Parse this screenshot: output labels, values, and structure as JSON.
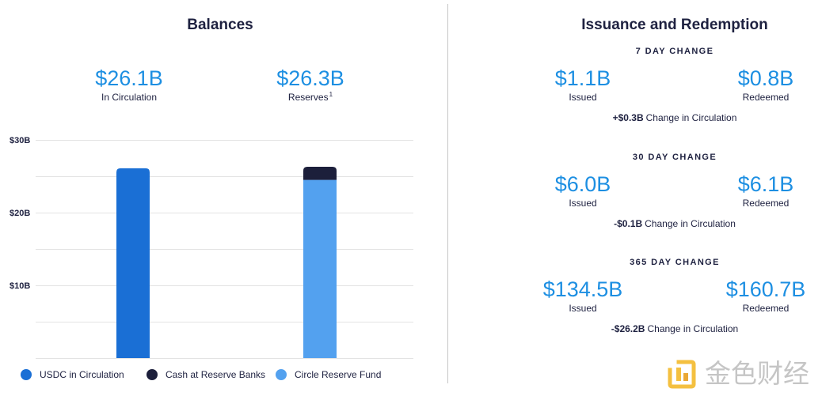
{
  "colors": {
    "text": "#1e2140",
    "accent": "#1d8fe2",
    "gridline": "#e3e3e3",
    "divider": "#c6c6c6"
  },
  "chart_data": {
    "type": "bar",
    "stacked": true,
    "title": "Balances",
    "ylim": [
      0,
      30
    ],
    "yticks": [
      10,
      20,
      30
    ],
    "ytick_labels": [
      "$10B",
      "$20B",
      "$30B"
    ],
    "ygrid_step": 5,
    "grid": true,
    "legend": "bottom",
    "series": [
      {
        "name": "USDC in Circulation",
        "color": "#1a6fd5",
        "values": [
          26.1,
          null
        ]
      },
      {
        "name": "Cash at Reserve Banks",
        "color": "#1c1f3b",
        "values": [
          null,
          1.8
        ]
      },
      {
        "name": "Circle Reserve Fund",
        "color": "#53a1ef",
        "values": [
          null,
          24.5
        ]
      }
    ]
  },
  "balances": {
    "stats": [
      {
        "value": "$26.1B",
        "label": "In Circulation"
      },
      {
        "value": "$26.3B",
        "label": "Reserves",
        "footnote": "1"
      }
    ]
  },
  "issuance": {
    "title": "Issuance and Redemption",
    "periods": [
      {
        "heading": "7 DAY CHANGE",
        "issued": {
          "value": "$1.1B",
          "label": "Issued"
        },
        "redeemed": {
          "value": "$0.8B",
          "label": "Redeemed"
        },
        "change": {
          "value": "+$0.3B",
          "label": "Change in Circulation"
        }
      },
      {
        "heading": "30 DAY CHANGE",
        "issued": {
          "value": "$6.0B",
          "label": "Issued"
        },
        "redeemed": {
          "value": "$6.1B",
          "label": "Redeemed"
        },
        "change": {
          "value": "-$0.1B",
          "label": "Change in Circulation"
        }
      },
      {
        "heading": "365 DAY CHANGE",
        "issued": {
          "value": "$134.5B",
          "label": "Issued"
        },
        "redeemed": {
          "value": "$160.7B",
          "label": "Redeemed"
        },
        "change": {
          "value": "-$26.2B",
          "label": "Change in Circulation"
        }
      }
    ]
  },
  "watermark": {
    "text": "金色财经",
    "icon": "jinse-logo-icon"
  }
}
